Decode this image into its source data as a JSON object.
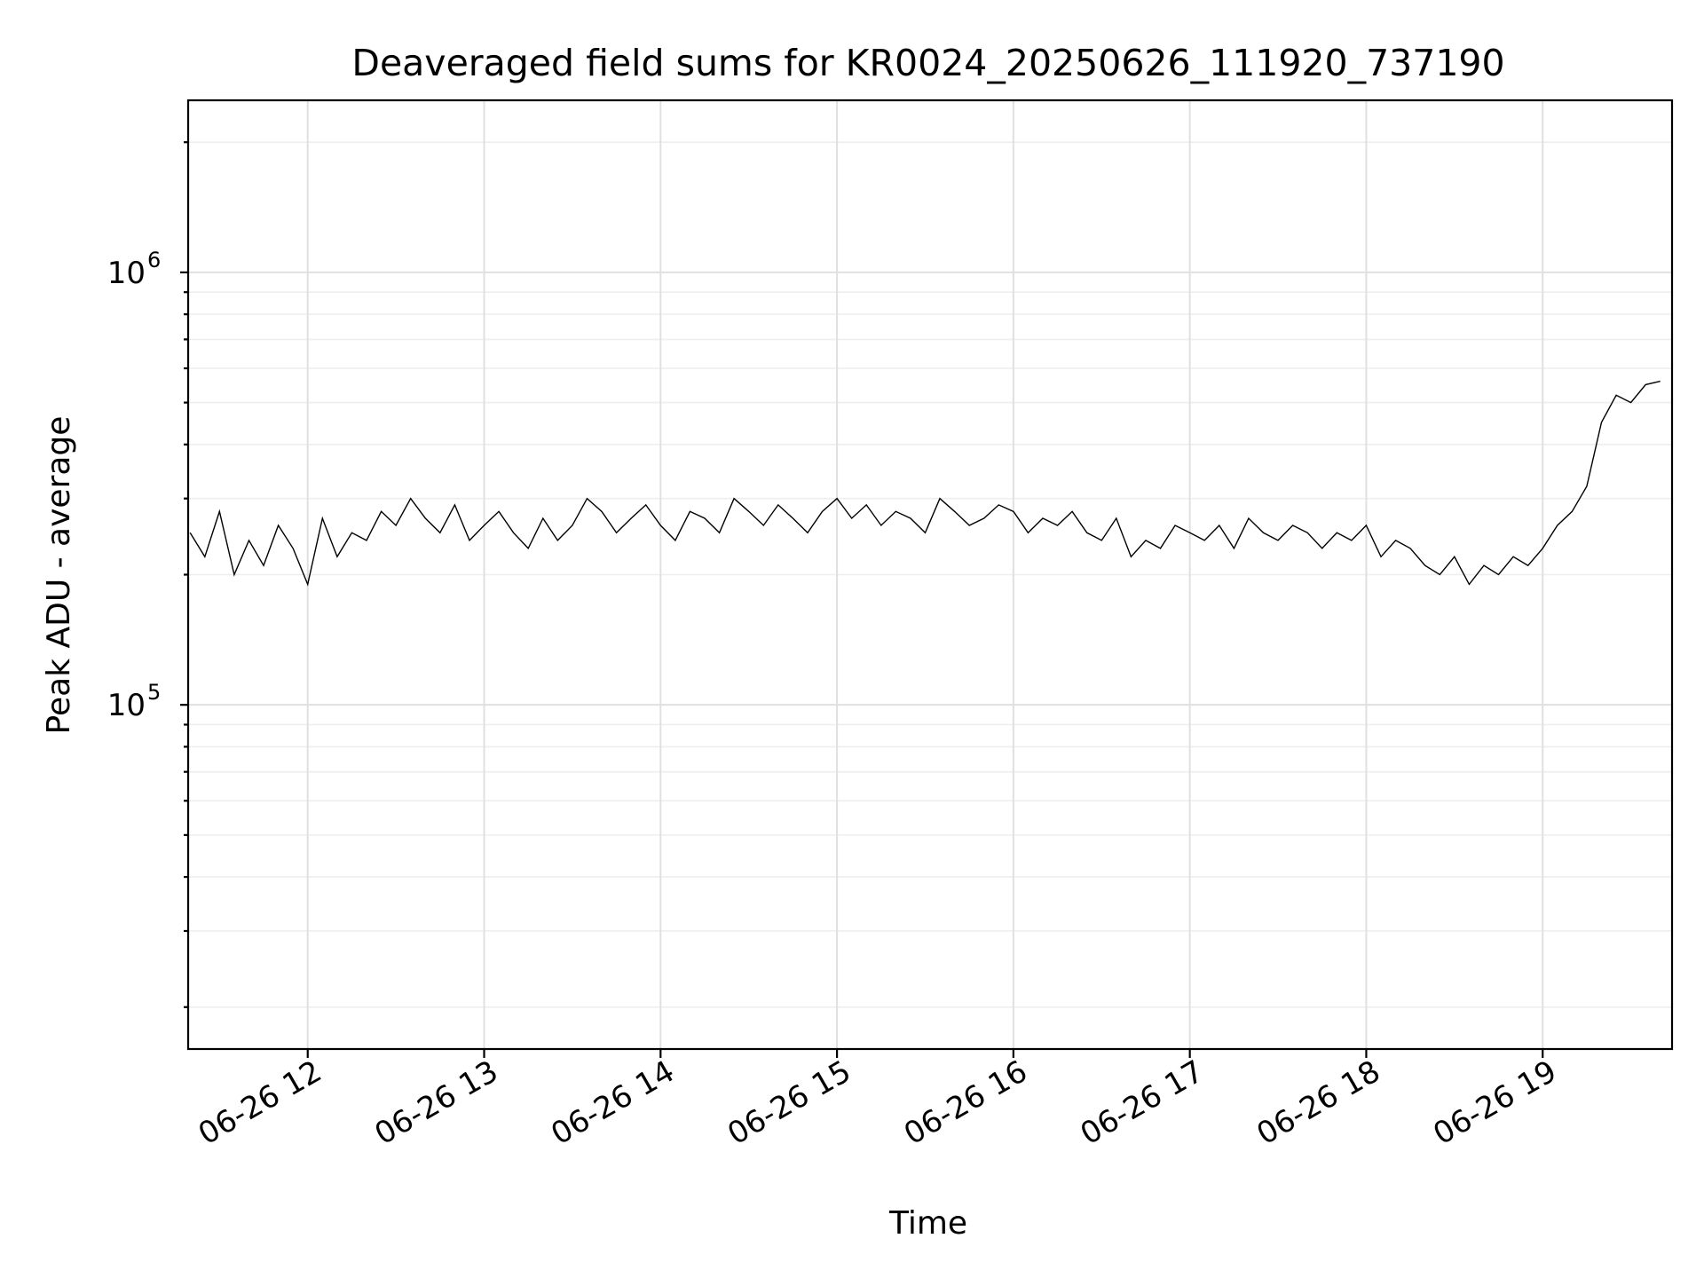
{
  "chart_data": {
    "type": "line",
    "title": "Deaveraged field sums for KR0024_20250626_111920_737190",
    "xlabel": "Time",
    "ylabel": "Peak ADU - average",
    "yscale": "log",
    "ylim": [
      16000,
      2500000
    ],
    "xlim": [
      "2025-06-26 11:19:20",
      "2025-06-26 19:44:00"
    ],
    "x_tick_labels": [
      "06-26 12",
      "06-26 13",
      "06-26 14",
      "06-26 15",
      "06-26 16",
      "06-26 17",
      "06-26 18",
      "06-26 19"
    ],
    "x_tick_times": [
      "2025-06-26 12:00",
      "2025-06-26 13:00",
      "2025-06-26 14:00",
      "2025-06-26 15:00",
      "2025-06-26 16:00",
      "2025-06-26 17:00",
      "2025-06-26 18:00",
      "2025-06-26 19:00"
    ],
    "y_tick_labels": [
      {
        "base": "10",
        "exp": "5",
        "value": 100000
      },
      {
        "base": "10",
        "exp": "6",
        "value": 1000000
      }
    ],
    "grid": true,
    "color": "#000000",
    "series": [
      {
        "x": [
          "2025-06-26 11:20",
          "2025-06-26 11:25",
          "2025-06-26 11:30",
          "2025-06-26 11:35",
          "2025-06-26 11:40",
          "2025-06-26 11:45",
          "2025-06-26 11:50",
          "2025-06-26 11:55",
          "2025-06-26 12:00",
          "2025-06-26 12:05",
          "2025-06-26 12:10",
          "2025-06-26 12:15",
          "2025-06-26 12:20",
          "2025-06-26 12:25",
          "2025-06-26 12:30",
          "2025-06-26 12:35",
          "2025-06-26 12:40",
          "2025-06-26 12:45",
          "2025-06-26 12:50",
          "2025-06-26 12:55",
          "2025-06-26 13:00",
          "2025-06-26 13:05",
          "2025-06-26 13:10",
          "2025-06-26 13:15",
          "2025-06-26 13:20",
          "2025-06-26 13:25",
          "2025-06-26 13:30",
          "2025-06-26 13:35",
          "2025-06-26 13:40",
          "2025-06-26 13:45",
          "2025-06-26 13:50",
          "2025-06-26 13:55",
          "2025-06-26 14:00",
          "2025-06-26 14:05",
          "2025-06-26 14:10",
          "2025-06-26 14:15",
          "2025-06-26 14:20",
          "2025-06-26 14:25",
          "2025-06-26 14:30",
          "2025-06-26 14:35",
          "2025-06-26 14:40",
          "2025-06-26 14:45",
          "2025-06-26 14:50",
          "2025-06-26 14:55",
          "2025-06-26 15:00",
          "2025-06-26 15:05",
          "2025-06-26 15:10",
          "2025-06-26 15:15",
          "2025-06-26 15:20",
          "2025-06-26 15:25",
          "2025-06-26 15:30",
          "2025-06-26 15:35",
          "2025-06-26 15:40",
          "2025-06-26 15:45",
          "2025-06-26 15:50",
          "2025-06-26 15:55",
          "2025-06-26 16:00",
          "2025-06-26 16:05",
          "2025-06-26 16:10",
          "2025-06-26 16:15",
          "2025-06-26 16:20",
          "2025-06-26 16:25",
          "2025-06-26 16:30",
          "2025-06-26 16:35",
          "2025-06-26 16:40",
          "2025-06-26 16:45",
          "2025-06-26 16:50",
          "2025-06-26 16:55",
          "2025-06-26 17:00",
          "2025-06-26 17:05",
          "2025-06-26 17:10",
          "2025-06-26 17:15",
          "2025-06-26 17:20",
          "2025-06-26 17:25",
          "2025-06-26 17:30",
          "2025-06-26 17:35",
          "2025-06-26 17:40",
          "2025-06-26 17:45",
          "2025-06-26 17:50",
          "2025-06-26 17:55",
          "2025-06-26 18:00",
          "2025-06-26 18:05",
          "2025-06-26 18:10",
          "2025-06-26 18:15",
          "2025-06-26 18:20",
          "2025-06-26 18:25",
          "2025-06-26 18:30",
          "2025-06-26 18:35",
          "2025-06-26 18:40",
          "2025-06-26 18:45",
          "2025-06-26 18:50",
          "2025-06-26 18:55",
          "2025-06-26 19:00",
          "2025-06-26 19:05",
          "2025-06-26 19:10",
          "2025-06-26 19:15",
          "2025-06-26 19:20",
          "2025-06-26 19:25",
          "2025-06-26 19:30",
          "2025-06-26 19:35",
          "2025-06-26 19:40"
        ],
        "y": [
          250000,
          220000,
          280000,
          200000,
          240000,
          210000,
          260000,
          230000,
          190000,
          270000,
          220000,
          250000,
          240000,
          280000,
          260000,
          300000,
          270000,
          250000,
          290000,
          240000,
          260000,
          280000,
          250000,
          230000,
          270000,
          240000,
          260000,
          300000,
          280000,
          250000,
          270000,
          290000,
          260000,
          240000,
          280000,
          270000,
          250000,
          300000,
          280000,
          260000,
          290000,
          270000,
          250000,
          280000,
          300000,
          270000,
          290000,
          260000,
          280000,
          270000,
          250000,
          300000,
          280000,
          260000,
          270000,
          290000,
          280000,
          250000,
          270000,
          260000,
          280000,
          250000,
          240000,
          270000,
          220000,
          240000,
          230000,
          260000,
          250000,
          240000,
          260000,
          230000,
          270000,
          250000,
          240000,
          260000,
          250000,
          230000,
          250000,
          240000,
          260000,
          220000,
          240000,
          230000,
          210000,
          200000,
          220000,
          190000,
          210000,
          200000,
          220000,
          210000,
          230000,
          260000,
          280000,
          320000,
          450000,
          520000,
          500000,
          550000,
          560000
        ]
      }
    ]
  }
}
